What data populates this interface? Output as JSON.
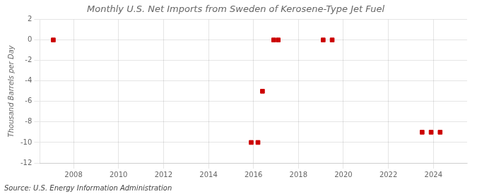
{
  "chart_data": {
    "type": "scatter",
    "title": "Monthly U.S. Net Imports from Sweden of Kerosene-Type Jet Fuel",
    "ylabel": "Thousand Barrels per Day",
    "source": "Source: U.S. Energy Information Administration",
    "x": [
      2007.1,
      2015.9,
      2016.2,
      2016.4,
      2016.9,
      2017.1,
      2019.1,
      2019.5,
      2023.5,
      2023.9,
      2024.3
    ],
    "values": [
      0,
      -10,
      -10,
      -5,
      0,
      0,
      0,
      0,
      -9,
      -9,
      -9
    ],
    "color": "#cc0000",
    "marker": "square",
    "xlim": [
      2006.5,
      2025.5
    ],
    "ylim": [
      -12,
      2
    ],
    "xticks": [
      2008,
      2010,
      2012,
      2014,
      2016,
      2018,
      2020,
      2022,
      2024
    ],
    "yticks": [
      2,
      0,
      -2,
      -4,
      -6,
      -8,
      -10,
      -12
    ],
    "grid": true
  }
}
